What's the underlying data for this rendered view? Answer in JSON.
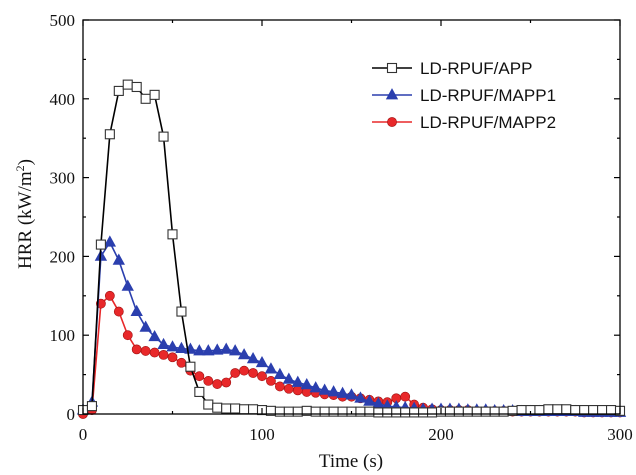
{
  "chart_data": {
    "type": "line",
    "title": "",
    "xlabel": "Time (s)",
    "ylabel_main": "HRR (kW/m",
    "ylabel_sup": "2",
    "ylabel_close": ")",
    "xlim": [
      0,
      300
    ],
    "ylim": [
      0,
      500
    ],
    "xticks": [
      0,
      100,
      200,
      300
    ],
    "yticks": [
      0,
      100,
      200,
      300,
      400,
      500
    ],
    "grid": false,
    "legend_position": "top-right",
    "series": [
      {
        "name": "LD-RPUF/APP",
        "color": "#000000",
        "marker": "square-open",
        "x": [
          0,
          5,
          10,
          15,
          20,
          25,
          30,
          35,
          40,
          45,
          50,
          55,
          60,
          65,
          70,
          75,
          80,
          85,
          90,
          95,
          100,
          105,
          110,
          115,
          120,
          125,
          130,
          135,
          140,
          145,
          150,
          155,
          160,
          165,
          170,
          175,
          180,
          185,
          190,
          195,
          200,
          205,
          210,
          215,
          220,
          225,
          230,
          235,
          240,
          245,
          250,
          255,
          260,
          265,
          270,
          275,
          280,
          285,
          290,
          295,
          300
        ],
        "y": [
          5,
          10,
          215,
          355,
          410,
          418,
          415,
          400,
          405,
          352,
          228,
          130,
          60,
          28,
          12,
          8,
          7,
          7,
          6,
          6,
          5,
          4,
          3,
          3,
          3,
          4,
          3,
          3,
          3,
          3,
          3,
          3,
          3,
          2,
          2,
          2,
          2,
          2,
          2,
          2,
          3,
          3,
          3,
          3,
          3,
          3,
          3,
          3,
          4,
          5,
          5,
          5,
          6,
          6,
          6,
          5,
          5,
          5,
          5,
          5,
          4
        ]
      },
      {
        "name": "LD-RPUF/MAPP1",
        "color": "#2b3fae",
        "marker": "triangle-filled",
        "x": [
          0,
          5,
          10,
          15,
          20,
          25,
          30,
          35,
          40,
          45,
          50,
          55,
          60,
          65,
          70,
          75,
          80,
          85,
          90,
          95,
          100,
          105,
          110,
          115,
          120,
          125,
          130,
          135,
          140,
          145,
          150,
          155,
          160,
          165,
          170,
          175,
          180,
          185,
          190,
          195,
          200,
          205,
          210,
          215,
          220,
          225,
          230,
          235,
          240,
          245,
          250,
          255,
          260,
          265,
          270,
          275,
          280,
          285,
          290,
          295,
          300
        ],
        "y": [
          5,
          15,
          200,
          218,
          195,
          162,
          130,
          110,
          98,
          88,
          85,
          83,
          82,
          80,
          80,
          81,
          82,
          80,
          75,
          70,
          65,
          57,
          50,
          44,
          40,
          37,
          33,
          30,
          28,
          26,
          24,
          20,
          16,
          13,
          10,
          9,
          8,
          7,
          6,
          6,
          6,
          6,
          6,
          5,
          5,
          5,
          4,
          4,
          4,
          3,
          3,
          3,
          3,
          3,
          3,
          3,
          2,
          2,
          2,
          2,
          2
        ]
      },
      {
        "name": "LD-RPUF/MAPP2",
        "color": "#e8282a",
        "marker": "circle-filled",
        "x": [
          0,
          5,
          10,
          15,
          20,
          25,
          30,
          35,
          40,
          45,
          50,
          55,
          60,
          65,
          70,
          75,
          80,
          85,
          90,
          95,
          100,
          105,
          110,
          115,
          120,
          125,
          130,
          135,
          140,
          145,
          150,
          155,
          160,
          165,
          170,
          175,
          180,
          185,
          190,
          195,
          200,
          205,
          210,
          215,
          220,
          225,
          230,
          235,
          240,
          245,
          250,
          255,
          260,
          265,
          270,
          275,
          280,
          285,
          290,
          295,
          300
        ],
        "y": [
          0,
          5,
          140,
          150,
          130,
          100,
          82,
          80,
          78,
          75,
          72,
          65,
          55,
          48,
          42,
          38,
          40,
          52,
          55,
          52,
          48,
          42,
          35,
          32,
          30,
          28,
          27,
          25,
          24,
          22,
          22,
          20,
          18,
          16,
          15,
          20,
          22,
          12,
          8,
          6,
          5,
          5,
          5,
          5,
          4,
          4,
          4,
          4,
          3,
          3,
          3,
          3,
          3,
          3,
          3,
          3,
          2,
          2,
          2,
          2,
          2
        ]
      }
    ]
  }
}
